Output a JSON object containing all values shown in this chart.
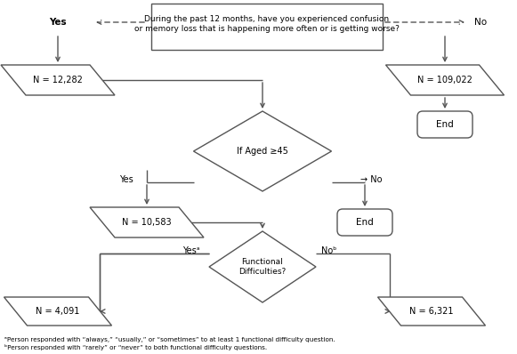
{
  "bg_color": "#ffffff",
  "line_color": "#555555",
  "text_color": "#000000",
  "question_text": "During the past 12 months, have you experienced confusion\nor memory loss that is happening more often or is getting worse?",
  "yes_bold": true,
  "footnote_a": "ᵃPerson responded with “always,” “usually,” or “sometimes” to at least 1 functional difficulty question.",
  "footnote_b": "ᵇPerson responded with “rarely” or “never” to both functional difficulty questions."
}
